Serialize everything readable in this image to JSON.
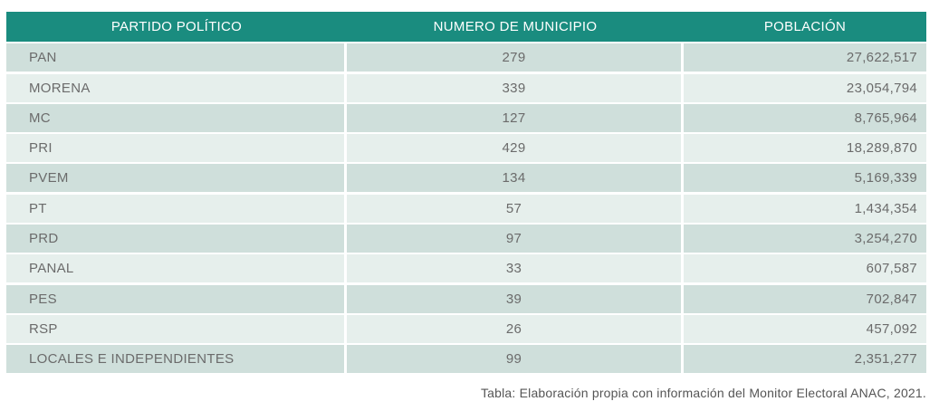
{
  "table": {
    "headers": {
      "party": "PARTIDO POLÍTICO",
      "municipalities": "NUMERO DE MUNICIPIO",
      "population": "POBLACIÓN"
    },
    "rows": [
      {
        "party": "PAN",
        "municipalities": "279",
        "population": "27,622,517"
      },
      {
        "party": "MORENA",
        "municipalities": "339",
        "population": "23,054,794"
      },
      {
        "party": "MC",
        "municipalities": "127",
        "population": "8,765,964"
      },
      {
        "party": "PRI",
        "municipalities": "429",
        "population": "18,289,870"
      },
      {
        "party": "PVEM",
        "municipalities": "134",
        "population": "5,169,339"
      },
      {
        "party": "PT",
        "municipalities": "57",
        "population": "1,434,354"
      },
      {
        "party": "PRD",
        "municipalities": "97",
        "population": "3,254,270"
      },
      {
        "party": "PANAL",
        "municipalities": "33",
        "population": "607,587"
      },
      {
        "party": "PES",
        "municipalities": "39",
        "population": "702,847"
      },
      {
        "party": "RSP",
        "municipalities": "26",
        "population": "457,092"
      },
      {
        "party": "LOCALES E INDEPENDIENTES",
        "municipalities": "99",
        "population": "2,351,277"
      }
    ]
  },
  "caption": "Tabla: Elaboración propia con información del Monitor Electoral ANAC, 2021.",
  "colors": {
    "header_bg": "#1a8c7f",
    "row_dark": "#cfdfdb",
    "row_light": "#e6efec"
  }
}
